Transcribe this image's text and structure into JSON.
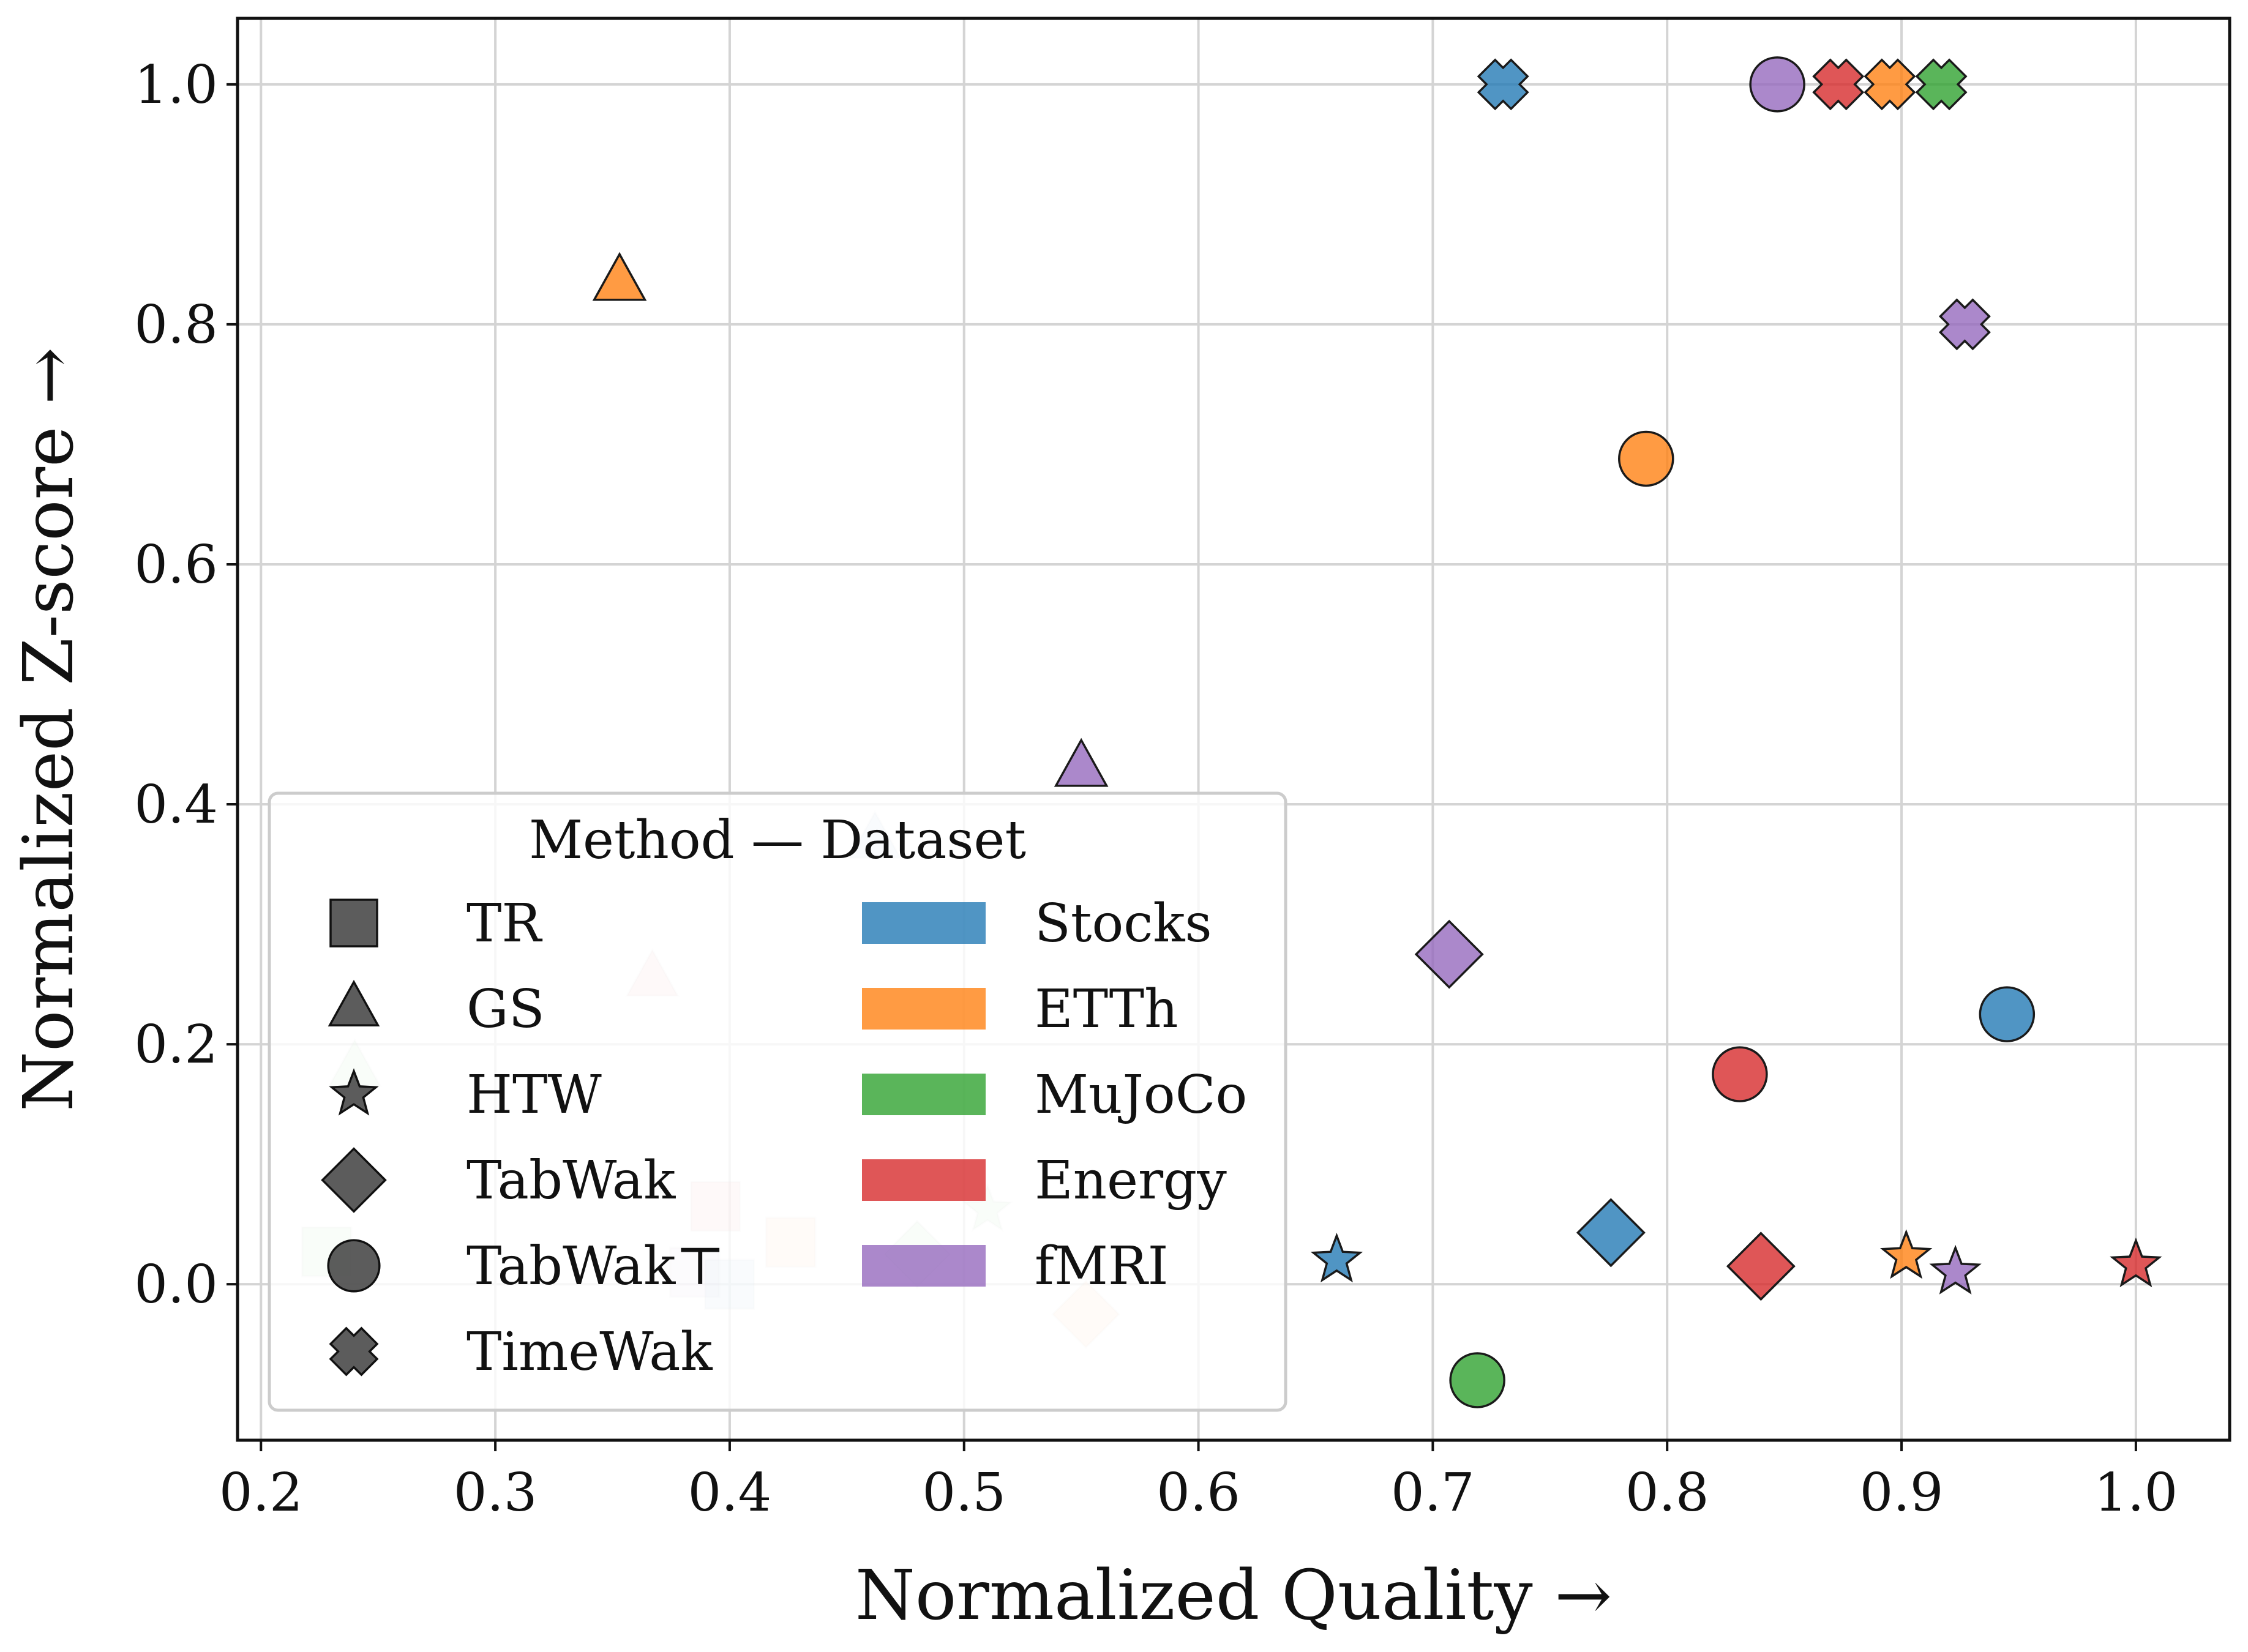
{
  "chart_data": {
    "type": "scatter",
    "xlabel": "Normalized Quality →",
    "ylabel": "Normalized Z-score →",
    "xlim": [
      0.19,
      1.04
    ],
    "ylim": [
      -0.13,
      1.055
    ],
    "xticks": [
      "0.2",
      "0.3",
      "0.4",
      "0.5",
      "0.6",
      "0.7",
      "0.8",
      "0.9",
      "1.0"
    ],
    "yticks": [
      "0.0",
      "0.2",
      "0.4",
      "0.6",
      "0.8",
      "1.0"
    ],
    "grid": true,
    "legend": {
      "title": "Method — Dataset",
      "placement": "lower-left",
      "methods": [
        {
          "name": "TR",
          "marker": "square"
        },
        {
          "name": "GS",
          "marker": "triangle"
        },
        {
          "name": "HTW",
          "marker": "star"
        },
        {
          "name": "TabWak",
          "marker": "diamond"
        },
        {
          "name": "TabWak⊤",
          "marker": "circle"
        },
        {
          "name": "TimeWak",
          "marker": "x"
        }
      ],
      "datasets": [
        {
          "name": "Stocks",
          "color": "#1f77b4"
        },
        {
          "name": "ETTh",
          "color": "#ff7f0e"
        },
        {
          "name": "MuJoCo",
          "color": "#2ca02c"
        },
        {
          "name": "Energy",
          "color": "#d62728"
        },
        {
          "name": "fMRI",
          "color": "#9467bd"
        }
      ]
    },
    "points": [
      {
        "method": "TR",
        "dataset": "MuJoCo",
        "x": 0.228,
        "y": 0.027,
        "faded": true
      },
      {
        "method": "TR",
        "dataset": "Energy",
        "x": 0.394,
        "y": 0.065,
        "faded": true
      },
      {
        "method": "TR",
        "dataset": "fMRI",
        "x": 0.385,
        "y": 0.01,
        "faded": true
      },
      {
        "method": "TR",
        "dataset": "Stocks",
        "x": 0.4,
        "y": 0.0,
        "faded": true
      },
      {
        "method": "TR",
        "dataset": "ETTh",
        "x": 0.426,
        "y": 0.035,
        "faded": true
      },
      {
        "method": "GS",
        "dataset": "MuJoCo",
        "x": 0.24,
        "y": 0.18,
        "faded": true
      },
      {
        "method": "GS",
        "dataset": "Energy",
        "x": 0.367,
        "y": 0.255,
        "faded": true
      },
      {
        "method": "GS",
        "dataset": "Stocks",
        "x": 0.462,
        "y": 0.37,
        "faded": true
      },
      {
        "method": "GS",
        "dataset": "ETTh",
        "x": 0.353,
        "y": 0.835,
        "faded": false
      },
      {
        "method": "GS",
        "dataset": "fMRI",
        "x": 0.55,
        "y": 0.43,
        "faded": false
      },
      {
        "method": "HTW",
        "dataset": "MuJoCo",
        "x": 0.51,
        "y": 0.062,
        "faded": true
      },
      {
        "method": "HTW",
        "dataset": "Stocks",
        "x": 0.659,
        "y": 0.02,
        "faded": false
      },
      {
        "method": "HTW",
        "dataset": "ETTh",
        "x": 0.902,
        "y": 0.023,
        "faded": false
      },
      {
        "method": "HTW",
        "dataset": "fMRI",
        "x": 0.923,
        "y": 0.01,
        "faded": false
      },
      {
        "method": "HTW",
        "dataset": "Energy",
        "x": 1.0,
        "y": 0.016,
        "faded": false
      },
      {
        "method": "TabWak",
        "dataset": "MuJoCo",
        "x": 0.48,
        "y": 0.025,
        "faded": true
      },
      {
        "method": "TabWak",
        "dataset": "ETTh",
        "x": 0.552,
        "y": -0.025,
        "faded": true
      },
      {
        "method": "TabWak",
        "dataset": "fMRI",
        "x": 0.707,
        "y": 0.275,
        "faded": false
      },
      {
        "method": "TabWak",
        "dataset": "Stocks",
        "x": 0.776,
        "y": 0.043,
        "faded": false
      },
      {
        "method": "TabWak",
        "dataset": "Energy",
        "x": 0.84,
        "y": 0.015,
        "faded": false
      },
      {
        "method": "TabWak⊤",
        "dataset": "MuJoCo",
        "x": 0.719,
        "y": -0.08,
        "faded": false
      },
      {
        "method": "TabWak⊤",
        "dataset": "ETTh",
        "x": 0.791,
        "y": 0.688,
        "faded": false
      },
      {
        "method": "TabWak⊤",
        "dataset": "Energy",
        "x": 0.831,
        "y": 0.175,
        "faded": false
      },
      {
        "method": "TabWak⊤",
        "dataset": "Stocks",
        "x": 0.945,
        "y": 0.225,
        "faded": false
      },
      {
        "method": "TabWak⊤",
        "dataset": "fMRI",
        "x": 0.847,
        "y": 1.0,
        "faded": false
      },
      {
        "method": "TimeWak",
        "dataset": "Stocks",
        "x": 0.73,
        "y": 1.0,
        "faded": false
      },
      {
        "method": "TimeWak",
        "dataset": "Energy",
        "x": 0.873,
        "y": 1.0,
        "faded": false
      },
      {
        "method": "TimeWak",
        "dataset": "ETTh",
        "x": 0.895,
        "y": 1.0,
        "faded": false
      },
      {
        "method": "TimeWak",
        "dataset": "MuJoCo",
        "x": 0.917,
        "y": 1.0,
        "faded": false
      },
      {
        "method": "TimeWak",
        "dataset": "fMRI",
        "x": 0.927,
        "y": 0.8,
        "faded": false
      }
    ]
  }
}
